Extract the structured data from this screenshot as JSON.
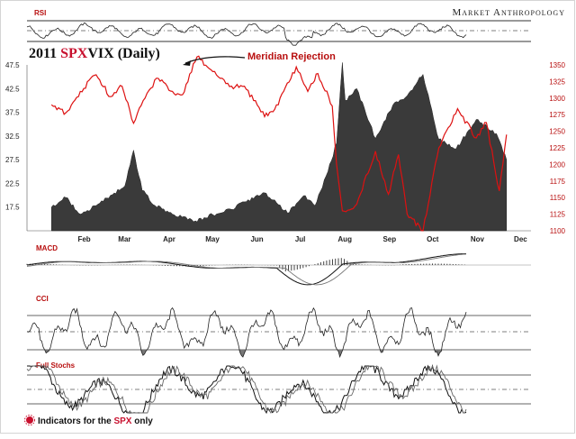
{
  "header": {
    "rsi_label": "RSI",
    "brand": "Market Anthropology",
    "year": "2011",
    "spx": "SPX",
    "vix": "VIX",
    "period": "(Daily)",
    "annotation": "Meridian Rejection"
  },
  "indicators": {
    "macd_label": "MACD",
    "cci_label": "CCI",
    "stoch_label": "Full Stochs"
  },
  "footer": {
    "prefix": "Indicators for the",
    "spx": "SPX",
    "suffix": "only"
  },
  "colors": {
    "spx_line": "#dd1111",
    "vix_area": "#3a3a3a",
    "label_red": "#b80f0f",
    "indicator_line": "#222222",
    "indicator_fill": "#777777"
  },
  "chart_data": {
    "type": "area",
    "x_ticks": [
      "Feb",
      "Mar",
      "Apr",
      "May",
      "Jun",
      "Jul",
      "Aug",
      "Sep",
      "Oct",
      "Nov",
      "Dec"
    ],
    "y_left_ticks": [
      "47.5",
      "42.5",
      "37.5",
      "32.5",
      "27.5",
      "22.5",
      "17.5"
    ],
    "y_right_ticks": [
      "1350",
      "1325",
      "1300",
      "1275",
      "1250",
      "1225",
      "1200",
      "1175",
      "1150",
      "1125",
      "1100"
    ],
    "ylim_left": [
      12.5,
      47.5
    ],
    "ylim_right": [
      1100,
      1350
    ],
    "series": [
      {
        "name": "VIX",
        "axis": "left",
        "x": [
          "2011-01-18",
          "2011-01-28",
          "2011-02-07",
          "2011-02-18",
          "2011-02-28",
          "2011-03-10",
          "2011-03-16",
          "2011-03-22",
          "2011-03-31",
          "2011-04-12",
          "2011-04-20",
          "2011-04-28",
          "2011-05-10",
          "2011-05-23",
          "2011-06-01",
          "2011-06-15",
          "2011-06-22",
          "2011-07-01",
          "2011-07-12",
          "2011-07-20",
          "2011-07-29",
          "2011-08-04",
          "2011-08-08",
          "2011-08-10",
          "2011-08-18",
          "2011-08-31",
          "2011-09-12",
          "2011-09-22",
          "2011-10-03",
          "2011-10-14",
          "2011-10-26",
          "2011-11-09",
          "2011-11-23",
          "2011-11-30"
        ],
        "values": [
          17.5,
          19.5,
          16.0,
          17.8,
          20.0,
          22.0,
          29.5,
          21.0,
          17.8,
          16.0,
          15.5,
          14.6,
          15.9,
          17.0,
          18.6,
          20.5,
          19.0,
          16.2,
          19.9,
          17.8,
          25.0,
          31.0,
          48.0,
          40.0,
          42.5,
          32.0,
          39.0,
          41.0,
          45.5,
          31.8,
          29.8,
          36.0,
          33.0,
          27.5
        ]
      },
      {
        "name": "SPX",
        "axis": "right",
        "x": [
          "2011-01-18",
          "2011-01-28",
          "2011-02-07",
          "2011-02-18",
          "2011-02-28",
          "2011-03-08",
          "2011-03-16",
          "2011-03-24",
          "2011-04-01",
          "2011-04-12",
          "2011-04-19",
          "2011-04-29",
          "2011-05-10",
          "2011-05-23",
          "2011-06-01",
          "2011-06-15",
          "2011-06-22",
          "2011-07-07",
          "2011-07-15",
          "2011-07-22",
          "2011-08-01",
          "2011-08-04",
          "2011-08-08",
          "2011-08-18",
          "2011-08-31",
          "2011-09-09",
          "2011-09-16",
          "2011-09-22",
          "2011-10-03",
          "2011-10-14",
          "2011-10-27",
          "2011-11-09",
          "2011-11-16",
          "2011-11-25",
          "2011-11-30"
        ],
        "values": [
          1290,
          1278,
          1310,
          1335,
          1302,
          1318,
          1262,
          1300,
          1330,
          1310,
          1305,
          1362,
          1340,
          1318,
          1318,
          1272,
          1283,
          1347,
          1310,
          1337,
          1288,
          1200,
          1130,
          1140,
          1220,
          1155,
          1215,
          1125,
          1100,
          1225,
          1284,
          1240,
          1263,
          1160,
          1245
        ]
      }
    ]
  }
}
